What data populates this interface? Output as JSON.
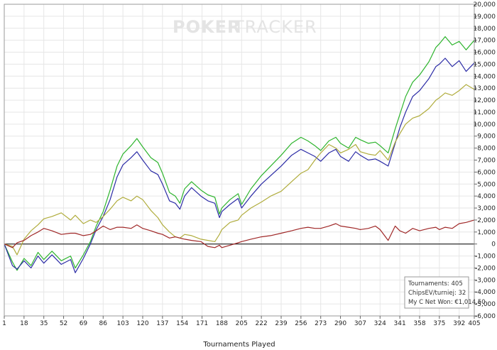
{
  "watermark": {
    "part1": "POKER",
    "part2": "TRACKER"
  },
  "stats_box": {
    "lines": [
      "Tournaments: 405",
      "ChipsEV/turniej: 32",
      "My C Net Won: €1,014.50"
    ]
  },
  "chart_data": {
    "type": "line",
    "title": "",
    "xlabel": "Tournaments Played",
    "ylabel": "",
    "xlim": [
      1,
      405
    ],
    "ylim": [
      -6000,
      20000
    ],
    "x_ticks": [
      1,
      18,
      35,
      52,
      69,
      86,
      103,
      120,
      137,
      154,
      171,
      188,
      205,
      222,
      239,
      256,
      273,
      290,
      307,
      324,
      341,
      358,
      375,
      392,
      405
    ],
    "y_ticks": [
      -6000,
      -5000,
      -4000,
      -3000,
      -2000,
      -1000,
      0,
      1000,
      2000,
      3000,
      4000,
      5000,
      6000,
      7000,
      8000,
      9000,
      10000,
      11000,
      12000,
      13000,
      14000,
      15000,
      16000,
      17000,
      18000,
      19000,
      20000
    ],
    "y_tick_labels": [
      "-6,000",
      "-5,000",
      "-4,000",
      "-3,000",
      "-2,000",
      "-1,000",
      "0",
      "1,000",
      "2,000",
      "3,000",
      "4,000",
      "5,000",
      "6,000",
      "7,000",
      "8,000",
      "9,000",
      "10,000",
      "11,000",
      "12,000",
      "13,000",
      "14,000",
      "15,000",
      "16,000",
      "17,000",
      "18,000",
      "19,000",
      "20,000"
    ],
    "grid": true,
    "zero_line": true,
    "series": [
      {
        "color": "#2db42d",
        "x": [
          1,
          8,
          12,
          18,
          24,
          30,
          35,
          42,
          50,
          58,
          62,
          69,
          75,
          80,
          86,
          92,
          98,
          103,
          110,
          115,
          120,
          127,
          133,
          137,
          143,
          148,
          152,
          156,
          162,
          170,
          176,
          182,
          186,
          188,
          195,
          202,
          205,
          213,
          222,
          230,
          239,
          248,
          256,
          262,
          268,
          273,
          280,
          286,
          290,
          297,
          303,
          307,
          314,
          320,
          324,
          331,
          337,
          341,
          346,
          352,
          358,
          366,
          372,
          375,
          380,
          386,
          392,
          398,
          405
        ],
        "y": [
          0,
          -1500,
          -2200,
          -1200,
          -1800,
          -700,
          -1300,
          -600,
          -1400,
          -1000,
          -2000,
          -900,
          200,
          1500,
          2700,
          4500,
          6500,
          7500,
          8200,
          8800,
          8100,
          7200,
          6800,
          5900,
          4300,
          4000,
          3400,
          4600,
          5200,
          4500,
          4100,
          3900,
          2500,
          3000,
          3700,
          4200,
          3300,
          4600,
          5700,
          6500,
          7400,
          8400,
          8900,
          8600,
          8200,
          7800,
          8600,
          8900,
          8400,
          8000,
          8900,
          8700,
          8400,
          8500,
          8200,
          7600,
          9600,
          10800,
          12300,
          13500,
          14100,
          15200,
          16400,
          16700,
          17300,
          16600,
          16900,
          16200,
          17000
        ]
      },
      {
        "color": "#2c2ca6",
        "x": [
          1,
          8,
          12,
          18,
          24,
          30,
          35,
          42,
          50,
          58,
          62,
          69,
          75,
          80,
          86,
          92,
          98,
          103,
          110,
          115,
          120,
          127,
          133,
          137,
          143,
          148,
          152,
          156,
          162,
          170,
          176,
          182,
          186,
          188,
          195,
          202,
          205,
          213,
          222,
          230,
          239,
          248,
          256,
          262,
          268,
          273,
          280,
          286,
          290,
          297,
          303,
          307,
          314,
          320,
          324,
          331,
          337,
          341,
          346,
          352,
          358,
          366,
          372,
          375,
          380,
          386,
          392,
          398,
          405
        ],
        "y": [
          0,
          -1800,
          -2100,
          -1400,
          -2000,
          -1000,
          -1600,
          -900,
          -1700,
          -1300,
          -2400,
          -1200,
          0,
          1200,
          2300,
          3700,
          5600,
          6600,
          7200,
          7700,
          7000,
          6100,
          5800,
          5000,
          3600,
          3400,
          2900,
          4000,
          4700,
          4000,
          3600,
          3400,
          2200,
          2700,
          3300,
          3800,
          3000,
          4000,
          5000,
          5700,
          6500,
          7400,
          7900,
          7600,
          7300,
          6900,
          7600,
          7900,
          7300,
          6900,
          7700,
          7400,
          7000,
          7100,
          6900,
          6500,
          8400,
          9700,
          11000,
          12300,
          12800,
          13800,
          14800,
          15000,
          15500,
          14800,
          15300,
          14400,
          15100
        ]
      },
      {
        "color": "#b0ac3c",
        "x": [
          1,
          8,
          12,
          18,
          24,
          30,
          35,
          42,
          50,
          58,
          62,
          69,
          75,
          80,
          86,
          92,
          98,
          103,
          110,
          115,
          120,
          127,
          133,
          137,
          143,
          148,
          152,
          156,
          162,
          170,
          176,
          182,
          186,
          188,
          195,
          202,
          205,
          213,
          222,
          230,
          239,
          248,
          256,
          262,
          268,
          273,
          280,
          286,
          290,
          297,
          303,
          307,
          314,
          320,
          324,
          331,
          337,
          341,
          346,
          352,
          358,
          366,
          372,
          375,
          380,
          386,
          392,
          398,
          405
        ],
        "y": [
          0,
          -200,
          -900,
          400,
          1100,
          1600,
          2100,
          2300,
          2600,
          2000,
          2400,
          1700,
          2000,
          1800,
          2300,
          2900,
          3600,
          3900,
          3600,
          4000,
          3700,
          2800,
          2200,
          1600,
          1000,
          600,
          500,
          800,
          700,
          400,
          300,
          200,
          800,
          1200,
          1800,
          2000,
          2400,
          3000,
          3500,
          4000,
          4400,
          5200,
          5900,
          6200,
          7000,
          7600,
          8300,
          8000,
          7600,
          7900,
          8300,
          7700,
          7500,
          7400,
          7800,
          7000,
          8500,
          9200,
          10000,
          10500,
          10700,
          11300,
          12000,
          12200,
          12600,
          12400,
          12800,
          13300,
          12900
        ]
      },
      {
        "color": "#a02828",
        "x": [
          1,
          8,
          12,
          18,
          24,
          30,
          35,
          42,
          50,
          58,
          62,
          69,
          75,
          80,
          86,
          92,
          98,
          103,
          110,
          115,
          120,
          127,
          133,
          137,
          143,
          148,
          152,
          156,
          162,
          170,
          176,
          182,
          186,
          188,
          195,
          202,
          205,
          213,
          222,
          230,
          239,
          248,
          256,
          262,
          268,
          273,
          280,
          286,
          290,
          297,
          303,
          307,
          314,
          320,
          324,
          331,
          337,
          341,
          346,
          352,
          358,
          366,
          372,
          375,
          380,
          386,
          392,
          398,
          405
        ],
        "y": [
          0,
          -300,
          100,
          300,
          700,
          1000,
          1300,
          1100,
          800,
          900,
          900,
          700,
          800,
          1100,
          1500,
          1200,
          1400,
          1400,
          1300,
          1600,
          1300,
          1100,
          900,
          800,
          500,
          600,
          500,
          400,
          300,
          200,
          -200,
          -300,
          -100,
          -300,
          -100,
          100,
          200,
          400,
          600,
          700,
          900,
          1100,
          1300,
          1400,
          1300,
          1300,
          1500,
          1700,
          1500,
          1400,
          1300,
          1200,
          1300,
          1500,
          1200,
          300,
          1500,
          1100,
          900,
          1300,
          1100,
          1300,
          1400,
          1200,
          1400,
          1300,
          1700,
          1800,
          2000
        ]
      }
    ]
  }
}
